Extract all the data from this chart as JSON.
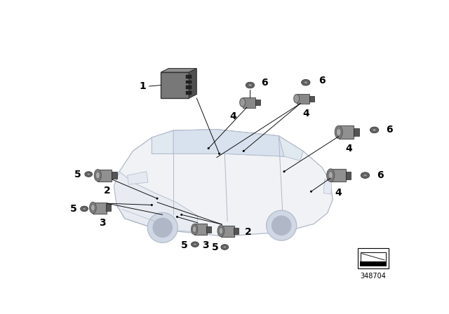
{
  "bg_color": "#ffffff",
  "part_number": "348704",
  "car_body_fill": "#f0f2f5",
  "car_outline": "#b0b8c8",
  "window_fill": "#e0e8f0",
  "component_mid": "#888888",
  "component_dark": "#555555",
  "component_light": "#aaaaaa",
  "component_silver": "#c0c0c0",
  "label_fs": 8.5,
  "lw_car": 0.9,
  "lw_leader": 0.6
}
